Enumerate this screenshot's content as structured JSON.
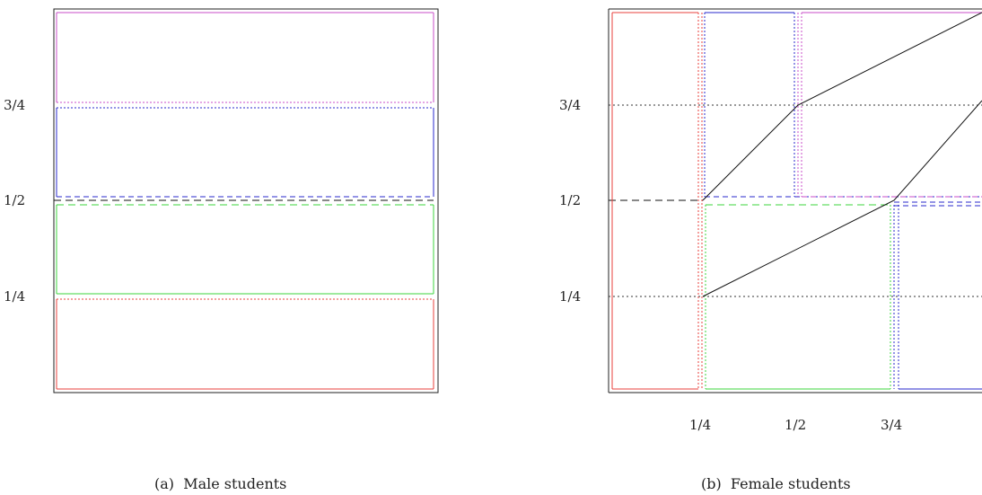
{
  "panels": [
    {
      "caption": "(a)  Male students",
      "y_ticks": [
        "3/4",
        "1/2",
        "1/4"
      ],
      "x_ticks": []
    },
    {
      "caption": "(b)  Female students",
      "y_ticks": [
        "3/4",
        "1/2",
        "1/4"
      ],
      "x_ticks": [
        "1/4",
        "1/2",
        "3/4"
      ]
    }
  ],
  "colors": {
    "red": "#e8413c",
    "blue": "#2a2acc",
    "green": "#3cd43c",
    "magenta": "#c84cc8",
    "black": "#111111",
    "guide": "#333333"
  }
}
